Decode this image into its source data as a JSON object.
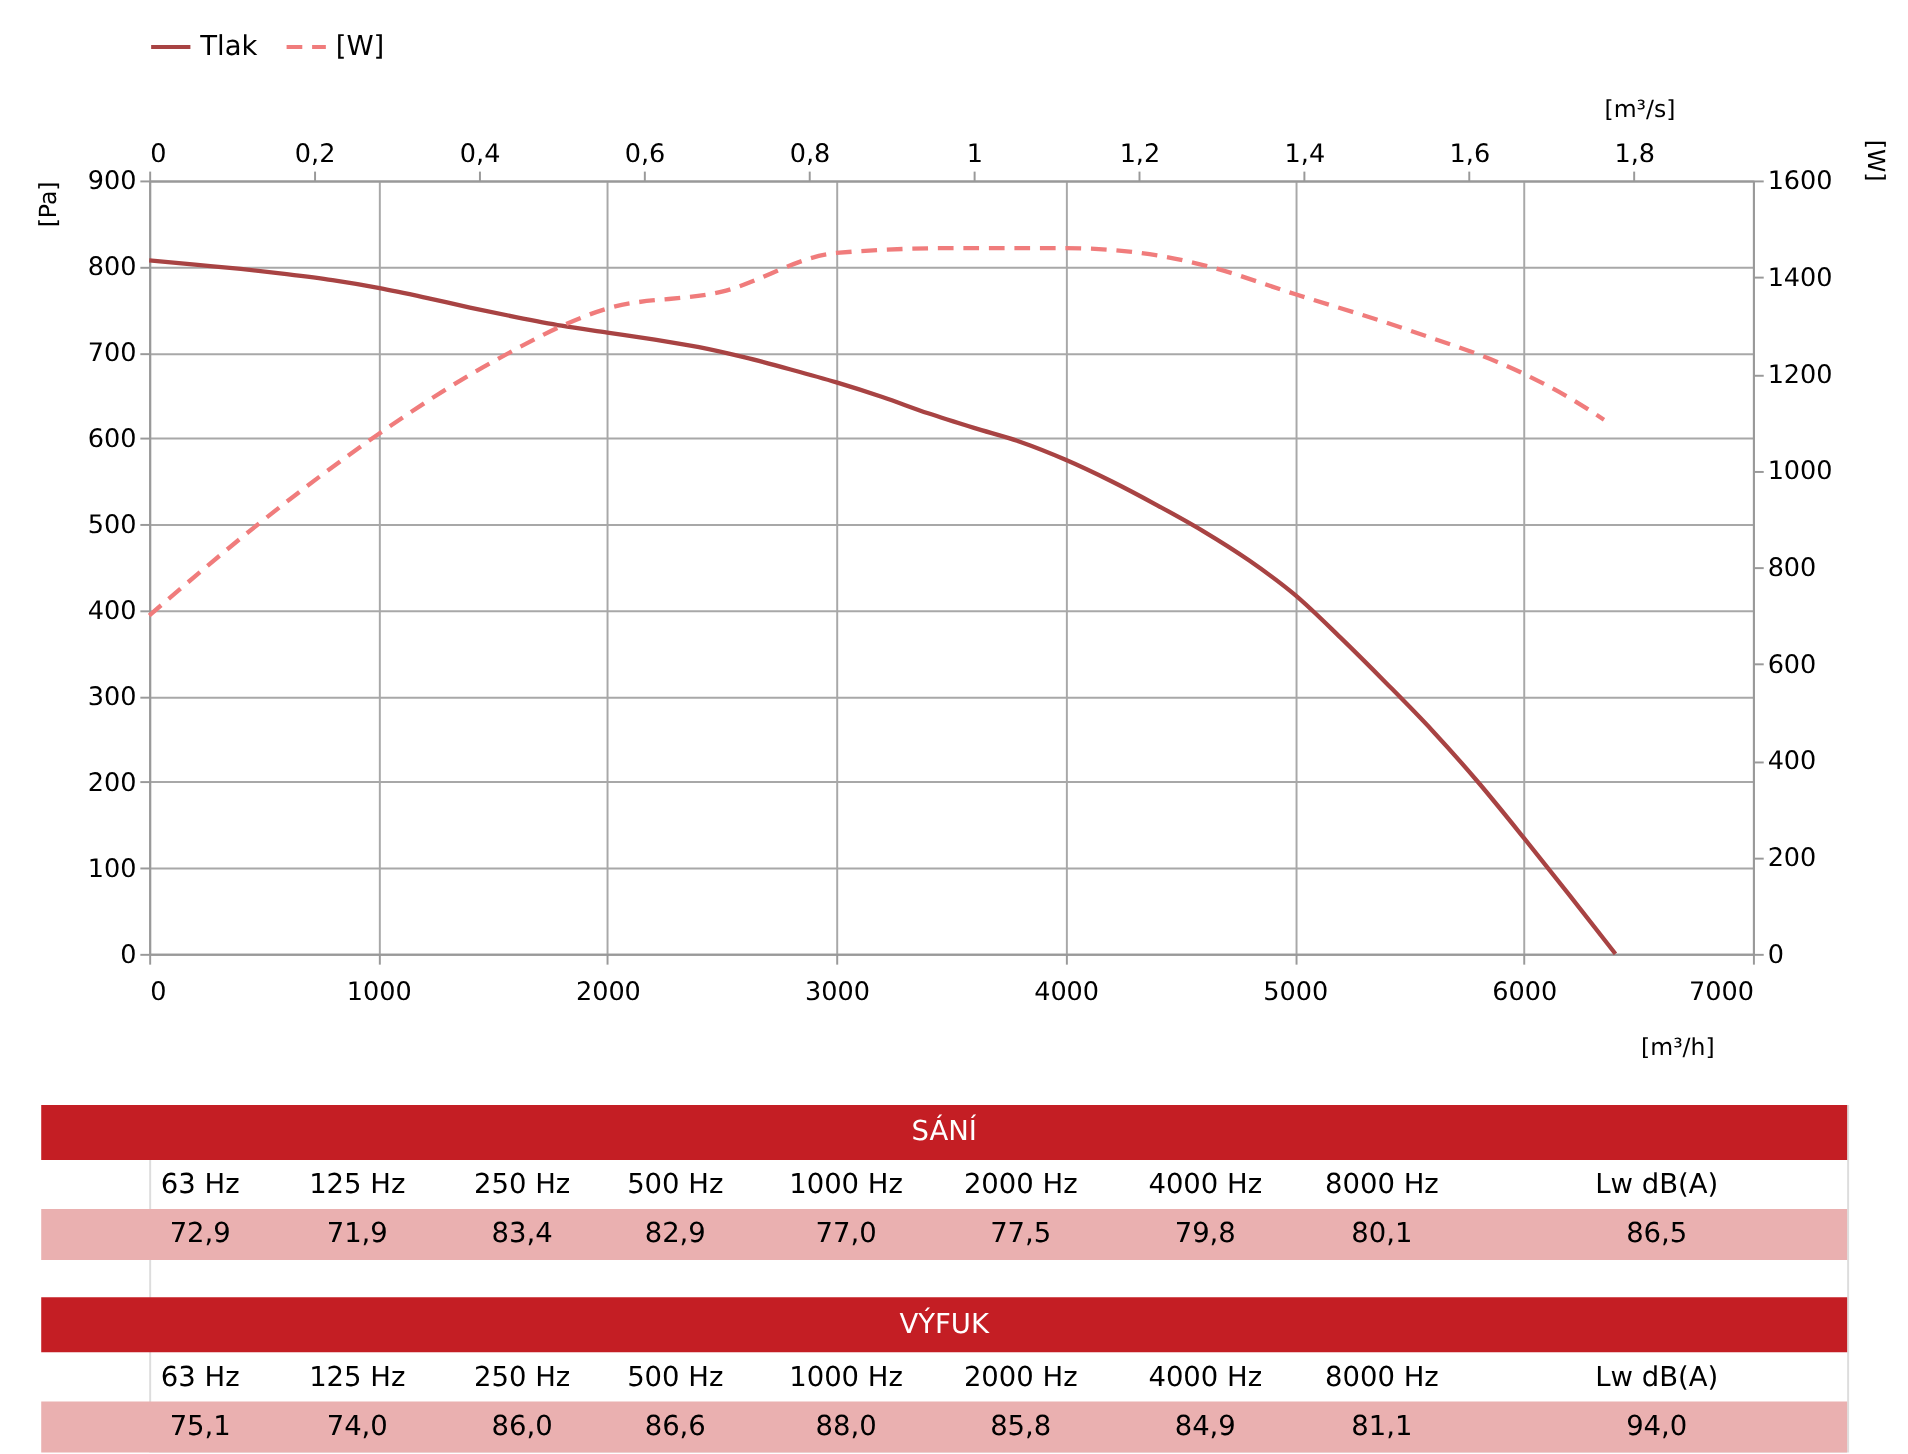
{
  "chart_data": {
    "type": "line",
    "xlabel": "[m³/h]",
    "ylabel": "[Pa]",
    "y2label": "[W]",
    "x2label": "[m³/s]",
    "xlim": [
      0,
      7000
    ],
    "xticks": [
      0,
      1000,
      2000,
      3000,
      4000,
      5000,
      6000,
      7000
    ],
    "ylim": [
      0,
      900
    ],
    "yticks": [
      0,
      100,
      200,
      300,
      400,
      500,
      600,
      700,
      800,
      900
    ],
    "y2lim": [
      0,
      1600
    ],
    "y2ticks": [
      0,
      200,
      400,
      600,
      800,
      1000,
      1200,
      1400,
      1600
    ],
    "x2lim": [
      0,
      1.9444
    ],
    "x2ticks": [
      0,
      {
        "value": 0.2,
        "label": "0,2"
      },
      {
        "value": 0.4,
        "label": "0,4"
      },
      {
        "value": 0.6,
        "label": "0,6"
      },
      {
        "value": 0.8,
        "label": "0,8"
      },
      1,
      {
        "value": 1.2,
        "label": "1,2"
      },
      {
        "value": 1.4,
        "label": "1,4"
      },
      {
        "value": 1.6,
        "label": "1,6"
      },
      {
        "value": 1.8,
        "label": "1,8"
      }
    ],
    "grid": true,
    "legend": "top",
    "series": [
      {
        "name": "Tlak",
        "color": "#a84343",
        "line_style": "solid",
        "x": [
          0,
          200,
          400,
          600,
          800,
          1000,
          1200,
          1400,
          1600,
          1800,
          2000,
          2200,
          2400,
          2600,
          2800,
          3000,
          3200,
          3400,
          3600,
          3800,
          4000,
          4200,
          4400,
          4600,
          4800,
          5000,
          5200,
          5400,
          5600,
          5800,
          6000,
          6200,
          6400
        ],
        "values": [
          807,
          802,
          797,
          791,
          784,
          775,
          764,
          752,
          741,
          731,
          723,
          715,
          706,
          694,
          680,
          665,
          648,
          629,
          612,
          596,
          575,
          550,
          522,
          492,
          458,
          418,
          368,
          315,
          260,
          200,
          135,
          68,
          0
        ]
      },
      {
        "name": "[W]",
        "color": "#f07c7c",
        "line_style": "dashed",
        "axis": "y2",
        "x": [
          0,
          500,
          1000,
          1500,
          2000,
          2500,
          3000,
          3500,
          4000,
          4400,
          4600,
          5000,
          5500,
          6000,
          6200,
          6350
        ],
        "values": [
          700,
          898,
          1075,
          1225,
          1335,
          1370,
          1450,
          1460,
          1460,
          1445,
          1425,
          1365,
          1290,
          1200,
          1150,
          1105
        ]
      }
    ],
    "annotations": [
      "SÁNÍ",
      "63 Hz",
      "125 Hz",
      "250 Hz",
      "500 Hz",
      "1000 Hz",
      "2000 Hz",
      "4000 Hz",
      "8000 Hz",
      "Lw dB(A)",
      "72,9",
      "71,9",
      "83,4",
      "82,9",
      "77,0",
      "77,5",
      "79,8",
      "80,1",
      "86,5",
      "VÝFUK",
      "63 Hz",
      "125 Hz",
      "250 Hz",
      "500 Hz",
      "1000 Hz",
      "2000 Hz",
      "4000 Hz",
      "8000 Hz",
      "Lw dB(A)",
      "75,1",
      "74,0",
      "86,0",
      "86,6",
      "88,0",
      "85,8",
      "84,9",
      "81,1",
      "94,0"
    ]
  }
}
